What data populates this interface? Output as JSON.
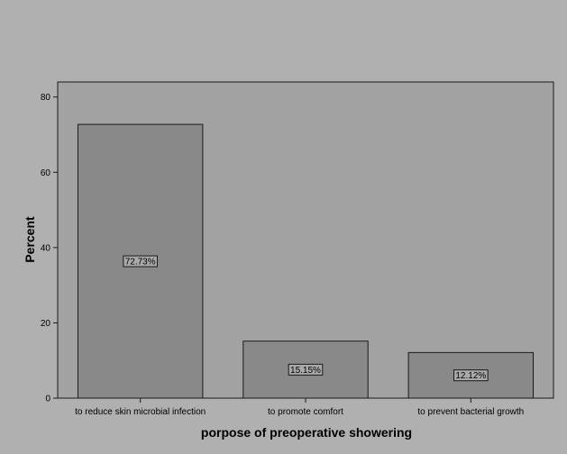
{
  "chart_data": {
    "type": "bar",
    "title": "",
    "xlabel": "porpose of preoperative showering",
    "ylabel": "Percent",
    "categories": [
      "to reduce skin microbial infection",
      "to promote comfort",
      "to prevent bacterial growth"
    ],
    "values": [
      72.73,
      15.15,
      12.12
    ],
    "data_labels": [
      "72.73%",
      "15.15%",
      "12.12%"
    ],
    "ylim": [
      0,
      84
    ],
    "yticks": [
      0,
      20,
      40,
      60,
      80
    ],
    "ytick_labels": [
      "0",
      "20",
      "40",
      "60",
      "80"
    ],
    "grid": false,
    "legend": "none",
    "colors": {
      "background": "#b0b0b0",
      "plot_area": "#a2a2a2",
      "bar_fill": "#898989",
      "bar_stroke": "#1a1a1a",
      "label_box": "#a9a9a9"
    }
  }
}
